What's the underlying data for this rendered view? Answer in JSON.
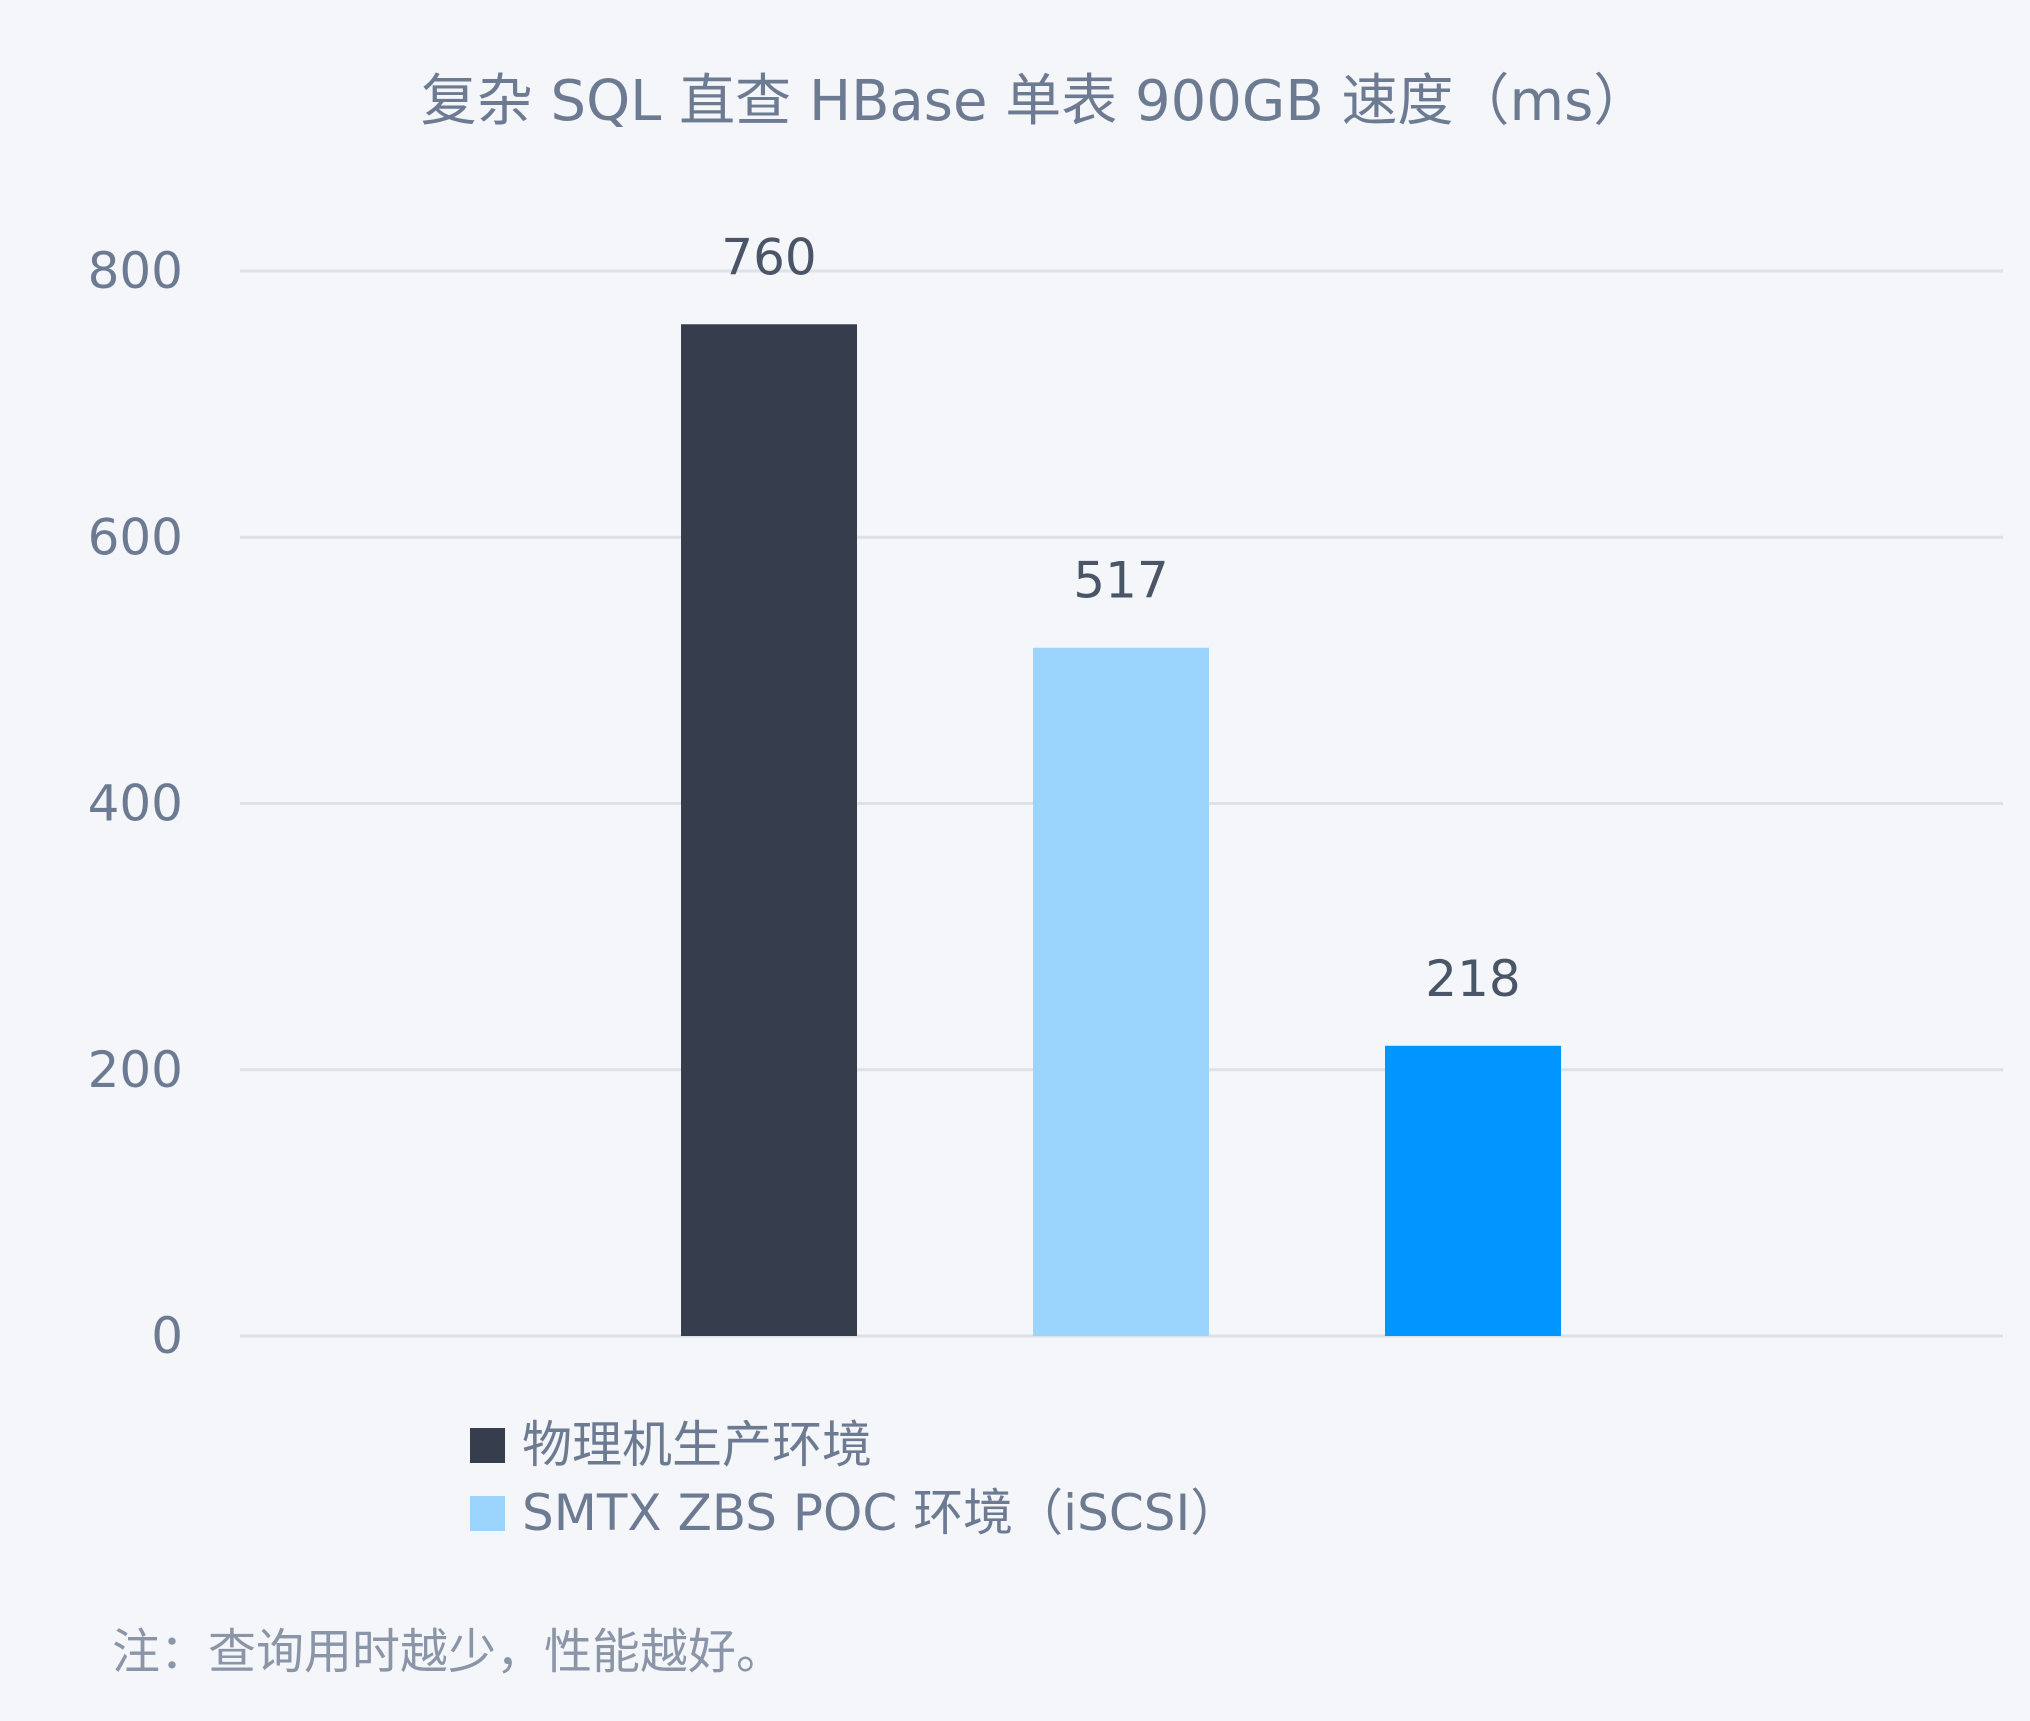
{
  "chart_data": {
    "type": "bar",
    "title": "复杂 SQL 直查 HBase 单表 900GB 速度（ms）",
    "xlabel": "",
    "ylabel": "",
    "ylim": [
      0,
      800
    ],
    "yticks": [
      0,
      200,
      400,
      600,
      800
    ],
    "grid": true,
    "legend_placement": "bottom-left",
    "series": [
      {
        "name": "物理机生产环境",
        "value": 760,
        "color": "#363d4c"
      },
      {
        "name": "SMTX ZBS POC 环境（iSCSI）",
        "value": 517,
        "color": "#9bd4fd"
      },
      {
        "name": "",
        "value": 218,
        "color": "#0095ff"
      }
    ],
    "note": "注：查询用时越少，性能越好。"
  }
}
